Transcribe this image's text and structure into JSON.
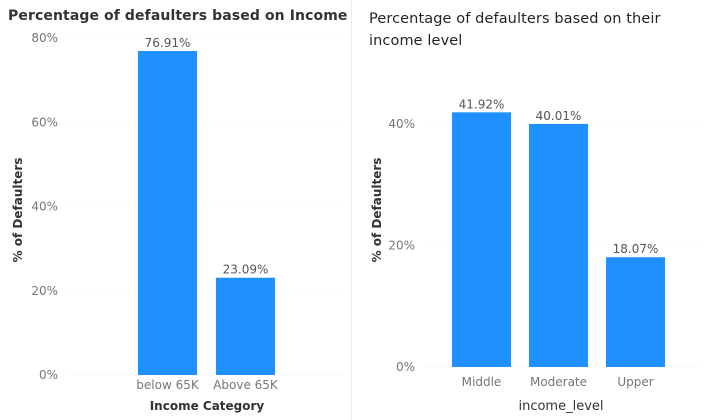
{
  "colors": {
    "bar": "#1E90FF",
    "background": "#ffffff"
  },
  "chart_data": [
    {
      "type": "bar",
      "title": "Percentage of defaulters based on Income",
      "xlabel": "Income Category",
      "ylabel": "% of Defaulters",
      "categories": [
        "below 65K",
        "Above 65K"
      ],
      "values": [
        76.91,
        23.09
      ],
      "data_labels": [
        "76.91%",
        "23.09%"
      ],
      "ylim": [
        0,
        80
      ],
      "yticks": [
        0,
        20,
        40,
        60,
        80
      ],
      "ytick_labels": [
        "0%",
        "20%",
        "40%",
        "60%",
        "80%"
      ],
      "grid": true,
      "legend": "none"
    },
    {
      "type": "bar",
      "title": "Percentage of defaulters based on their income level",
      "xlabel": "income_level",
      "ylabel": "% of Defaulters",
      "categories": [
        "Middle",
        "Moderate",
        "Upper"
      ],
      "values": [
        41.92,
        40.01,
        18.07
      ],
      "data_labels": [
        "41.92%",
        "40.01%",
        "18.07%"
      ],
      "ylim": [
        0,
        40
      ],
      "yticks": [
        0,
        20,
        40
      ],
      "ytick_labels": [
        "0%",
        "20%",
        "40%"
      ],
      "grid": true,
      "legend": "none"
    }
  ]
}
